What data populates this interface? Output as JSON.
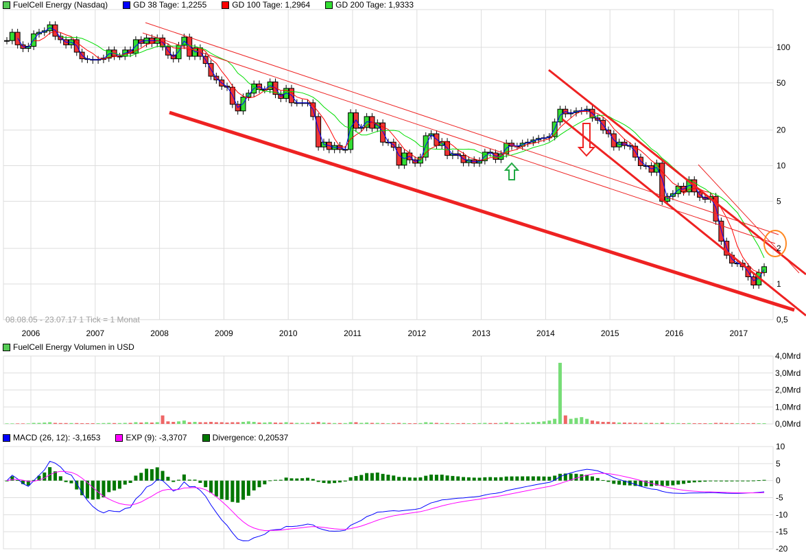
{
  "colors": {
    "up": "#33dd33",
    "down": "#ee3333",
    "gd38": "#0000ff",
    "gd100": "#ff0000",
    "gd200": "#00dd00",
    "macd": "#0000ff",
    "exp": "#ff00ff",
    "divergence": "#007700",
    "grid": "#dddddd"
  },
  "price_legend": {
    "title": "FuelCell Energy (Nasdaq)",
    "gd38": "GD 38 Tage: 1,2255",
    "gd100": "GD 100 Tage: 1,2964",
    "gd200": "GD 200 Tage: 1,9333"
  },
  "range_label": "08.08.05 - 23.07.17   1 Tick = 1 Monat",
  "volume_legend": {
    "title": "FuelCell Energy Volumen in USD"
  },
  "macd_legend": {
    "macd": "MACD (26, 12): -3,1653",
    "exp": "EXP (9): -3,3707",
    "divergence": "Divergence: 0,20537"
  },
  "chart_data": [
    {
      "type": "candlestick",
      "scale": "log",
      "ylim": [
        0.45,
        170
      ],
      "grid": true,
      "period": "monthly",
      "start": "2005-08",
      "x_tick_labels": [
        "2006",
        "2007",
        "2008",
        "2009",
        "2010",
        "2011",
        "2012",
        "2013",
        "2014",
        "2015",
        "2016",
        "2017"
      ],
      "y_tick_labels": [
        "100",
        "50",
        "20",
        "10",
        "5",
        "2",
        "1",
        "0,5"
      ],
      "y_ticks": [
        100,
        50,
        20,
        10,
        5,
        2,
        1,
        0.5
      ],
      "closes": [
        114,
        134,
        105,
        98,
        102,
        130,
        134,
        138,
        155,
        124,
        116,
        105,
        116,
        91,
        80,
        79,
        78,
        79,
        81,
        95,
        84,
        84,
        95,
        89,
        116,
        108,
        120,
        108,
        120,
        101,
        86,
        80,
        104,
        122,
        84,
        99,
        84,
        73,
        57,
        53,
        47,
        46,
        33,
        29,
        38,
        41,
        49,
        44,
        44,
        51,
        40,
        37,
        45,
        34,
        34,
        34,
        34,
        26,
        14.4,
        15.8,
        13.7,
        14.8,
        13.7,
        13.7,
        28,
        20.7,
        21,
        26,
        20.7,
        23,
        15.8,
        15.8,
        14.3,
        10.1,
        12.8,
        11.2,
        10.5,
        11.8,
        17.9,
        18.6,
        14.8,
        16,
        12.2,
        12.6,
        12.2,
        10.6,
        11.2,
        10.5,
        11,
        13,
        12.8,
        11.3,
        12.6,
        15.5,
        14.6,
        14.6,
        15.5,
        15.8,
        16.5,
        17,
        17.2,
        17.6,
        23.4,
        30,
        27.4,
        28,
        29,
        29.2,
        30,
        25.3,
        24.2,
        20,
        18.6,
        14.4,
        15.8,
        14.8,
        14.6,
        11.8,
        10,
        10,
        8.8,
        10.5,
        5,
        5.5,
        5.8,
        6.7,
        6,
        7.6,
        6,
        5.4,
        5.2,
        5.5,
        3.4,
        2.3,
        1.75,
        1.5,
        1.5,
        1.4,
        1.15,
        0.98,
        1.25,
        1.4
      ],
      "series": [
        {
          "name": "GD 38 Tage",
          "value": 1.2255
        },
        {
          "name": "GD 100 Tage",
          "value": 1.2964
        },
        {
          "name": "GD 200 Tage",
          "value": 1.9333
        }
      ]
    },
    {
      "type": "bar",
      "ylim": [
        0,
        4.0
      ],
      "y_tick_labels": [
        "4,0Mrd",
        "3,0Mrd",
        "2,0Mrd",
        "1,0Mrd",
        "0,0Mrd"
      ],
      "y_ticks": [
        4,
        3,
        2,
        1,
        0
      ],
      "unit": "Mrd USD",
      "values": [
        0.03,
        0.03,
        0.03,
        0.03,
        0.03,
        0.06,
        0.06,
        0.08,
        0.1,
        0.06,
        0.05,
        0.05,
        0.05,
        0.05,
        0.04,
        0.04,
        0.04,
        0.04,
        0.05,
        0.06,
        0.05,
        0.05,
        0.06,
        0.06,
        0.1,
        0.08,
        0.1,
        0.08,
        0.1,
        0.5,
        0.15,
        0.12,
        0.15,
        0.2,
        0.1,
        0.12,
        0.1,
        0.1,
        0.12,
        0.1,
        0.1,
        0.08,
        0.1,
        0.1,
        0.12,
        0.15,
        0.12,
        0.08,
        0.08,
        0.1,
        0.08,
        0.07,
        0.1,
        0.07,
        0.06,
        0.06,
        0.06,
        0.08,
        0.12,
        0.08,
        0.06,
        0.05,
        0.05,
        0.05,
        0.1,
        0.1,
        0.06,
        0.08,
        0.06,
        0.06,
        0.05,
        0.04,
        0.05,
        0.06,
        0.05,
        0.04,
        0.04,
        0.05,
        0.1,
        0.08,
        0.06,
        0.05,
        0.05,
        0.04,
        0.04,
        0.05,
        0.04,
        0.04,
        0.05,
        0.06,
        0.05,
        0.05,
        0.06,
        0.1,
        0.06,
        0.05,
        0.06,
        0.08,
        0.1,
        0.12,
        0.15,
        0.2,
        0.3,
        3.6,
        0.5,
        0.3,
        0.35,
        0.4,
        0.3,
        0.2,
        0.15,
        0.12,
        0.12,
        0.1,
        0.08,
        0.08,
        0.07,
        0.07,
        0.06,
        0.06,
        0.06,
        0.05,
        0.08,
        0.05,
        0.05,
        0.05,
        0.04,
        0.05,
        0.04,
        0.04,
        0.04,
        0.04,
        0.06,
        0.06,
        0.05,
        0.05,
        0.04,
        0.04,
        0.04,
        0.05,
        0.04,
        0.04
      ]
    },
    {
      "type": "line",
      "ylim": [
        -20,
        10
      ],
      "y_tick_labels": [
        "10",
        "5",
        "0",
        "-5",
        "-10",
        "-15",
        "-20"
      ],
      "y_ticks": [
        10,
        5,
        0,
        -5,
        -10,
        -15,
        -20
      ],
      "series": [
        {
          "name": "MACD (26, 12)",
          "last": -3.1653
        },
        {
          "name": "EXP (9)",
          "last": -3.3707
        },
        {
          "name": "Divergence",
          "last": 0.20537
        }
      ]
    }
  ]
}
